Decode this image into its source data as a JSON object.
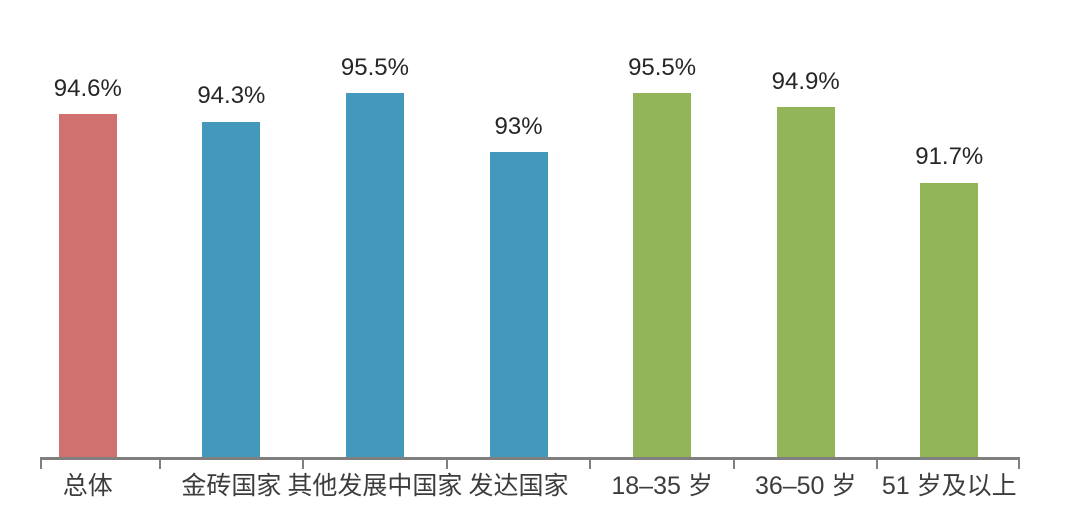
{
  "chart_data": {
    "type": "bar",
    "title": "",
    "xlabel": "",
    "ylabel": "",
    "categories": [
      "总体",
      "金砖国家",
      "其他发展中国家",
      "发达国家",
      "18–35 岁",
      "36–50 岁",
      "51 岁及以上"
    ],
    "values": [
      94.6,
      94.3,
      95.5,
      93,
      95.5,
      94.9,
      91.7
    ],
    "value_labels": [
      "94.6%",
      "94.3%",
      "95.5%",
      "93%",
      "95.5%",
      "94.9%",
      "91.7%"
    ],
    "bar_colors": [
      "#D0706F",
      "#4398BB",
      "#4398BB",
      "#4398BB",
      "#93B55A",
      "#93B55A",
      "#93B55A"
    ],
    "group_colors": {
      "overall": "#D0706F",
      "country_groups": "#4398BB",
      "age_groups": "#93B55A"
    },
    "ylim": [
      80,
      100
    ],
    "grid": false,
    "legend": false,
    "axis_color": "#7F7F7F",
    "value_label_color": "#262626",
    "category_label_color": "#3D3D3D",
    "background_color": "#FFFFFF"
  }
}
